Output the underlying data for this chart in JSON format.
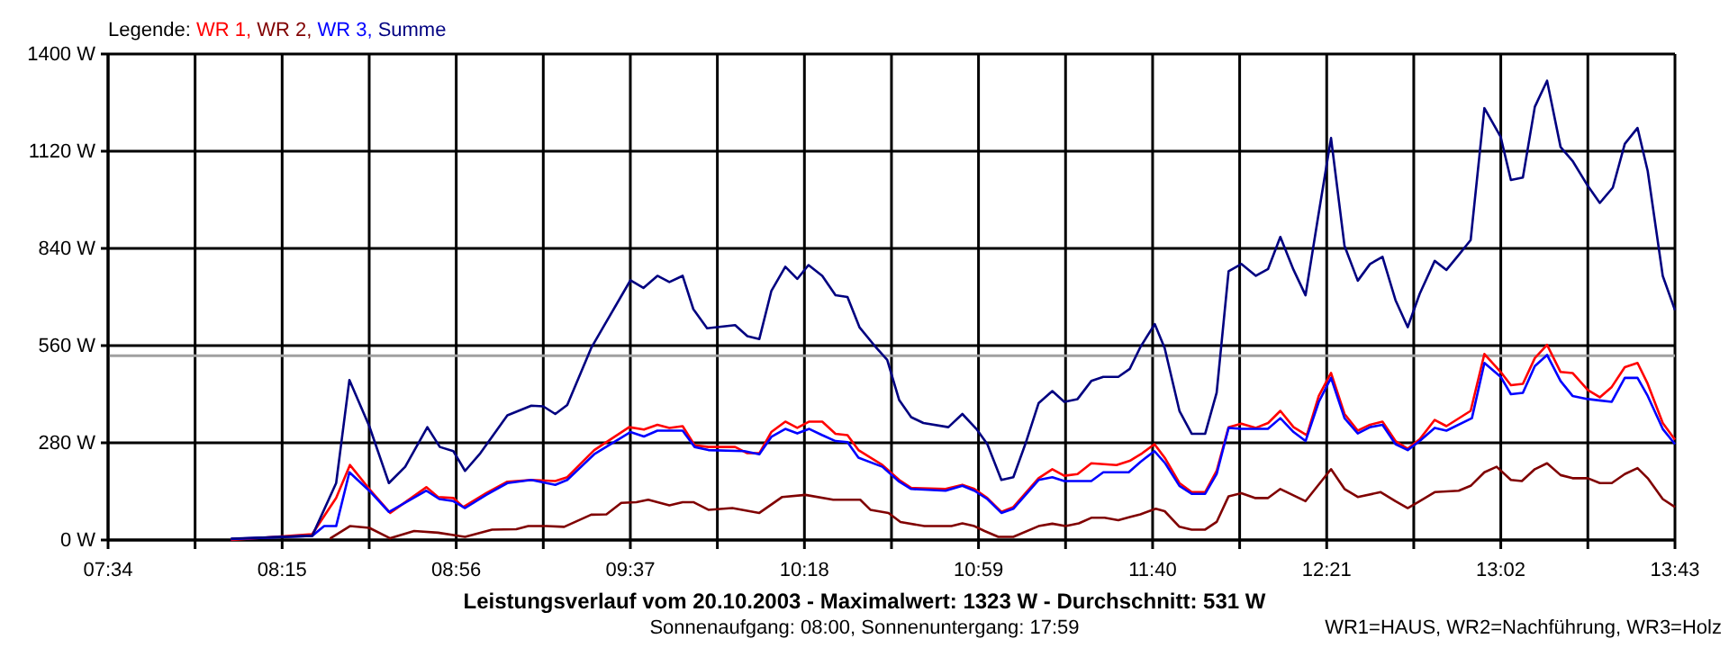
{
  "chart_data": {
    "type": "line",
    "title": "Leistungsverlauf vom 20.10.2003 - Maximalwert: 1323 W - Durchschnitt: 531 W",
    "subtitle": "Sonnenaufgang: 08:00, Sonnenuntergang: 17:59",
    "annotations": [
      "WR1=HAUS, WR2=Nachführung, WR3=Holz"
    ],
    "legend_title": "Legende:",
    "legend": "top left",
    "grid": true,
    "xlim": [
      7.5667,
      13.717
    ],
    "xticks": [
      {
        "value": 7.5667,
        "label": "07:34"
      },
      {
        "value": 7.9083,
        "label": null
      },
      {
        "value": 8.25,
        "label": "08:15"
      },
      {
        "value": 8.5917,
        "label": null
      },
      {
        "value": 8.9333,
        "label": "08:56"
      },
      {
        "value": 9.275,
        "label": null
      },
      {
        "value": 9.6167,
        "label": "09:37"
      },
      {
        "value": 9.9583,
        "label": null
      },
      {
        "value": 10.3,
        "label": "10:18"
      },
      {
        "value": 10.6417,
        "label": null
      },
      {
        "value": 10.9833,
        "label": "10:59"
      },
      {
        "value": 11.325,
        "label": null
      },
      {
        "value": 11.6667,
        "label": "11:40"
      },
      {
        "value": 12.0083,
        "label": null
      },
      {
        "value": 12.35,
        "label": "12:21"
      },
      {
        "value": 12.6917,
        "label": null
      },
      {
        "value": 13.0333,
        "label": "13:02"
      },
      {
        "value": 13.375,
        "label": null
      },
      {
        "value": 13.717,
        "label": "13:43"
      }
    ],
    "ylim": [
      0,
      1400
    ],
    "yticks": [
      {
        "value": 0,
        "label": "0 W"
      },
      {
        "value": 280,
        "label": "280 W"
      },
      {
        "value": 560,
        "label": "560 W"
      },
      {
        "value": 840,
        "label": "840 W"
      },
      {
        "value": 1120,
        "label": "1120 W"
      },
      {
        "value": 1400,
        "label": "1400 W"
      }
    ],
    "ref_lines": [
      {
        "axis": "y",
        "value": 531,
        "color": "#a0a0a0"
      }
    ],
    "series": [
      {
        "name": "WR 1,",
        "color": "#ff0000",
        "x": [
          8.049,
          8.368,
          8.462,
          8.516,
          8.592,
          8.674,
          8.816,
          8.862,
          8.922,
          8.961,
          9.051,
          9.134,
          9.228,
          9.322,
          9.369,
          9.475,
          9.612,
          9.67,
          9.723,
          9.77,
          9.822,
          9.869,
          9.923,
          10.028,
          10.076,
          10.123,
          10.17,
          10.225,
          10.272,
          10.319,
          10.37,
          10.422,
          10.469,
          10.512,
          10.606,
          10.672,
          10.719,
          10.854,
          10.92,
          10.967,
          11.018,
          11.073,
          11.12,
          11.219,
          11.273,
          11.32,
          11.372,
          11.426,
          11.525,
          11.577,
          11.626,
          11.674,
          11.716,
          11.772,
          11.82,
          11.873,
          11.918,
          11.965,
          12.015,
          12.072,
          12.12,
          12.168,
          12.22,
          12.272,
          12.319,
          12.367,
          12.42,
          12.472,
          12.52,
          12.569,
          12.62,
          12.668,
          12.715,
          12.774,
          12.82,
          12.915,
          12.969,
          13.033,
          13.073,
          13.12,
          13.167,
          13.215,
          13.268,
          13.315,
          13.375,
          13.422,
          13.469,
          13.52,
          13.57,
          13.61,
          13.669,
          13.717
        ],
        "values": [
          0,
          17,
          121,
          216,
          147,
          78,
          152,
          124,
          121,
          95,
          135,
          168,
          173,
          170,
          181,
          259,
          325,
          318,
          332,
          323,
          328,
          273,
          268,
          268,
          250,
          250,
          311,
          341,
          323,
          341,
          341,
          306,
          302,
          259,
          216,
          173,
          150,
          147,
          159,
          147,
          121,
          81,
          95,
          178,
          204,
          185,
          190,
          221,
          216,
          228,
          250,
          276,
          235,
          164,
          138,
          138,
          199,
          325,
          335,
          323,
          337,
          372,
          325,
          302,
          415,
          481,
          363,
          315,
          332,
          341,
          285,
          263,
          290,
          346,
          328,
          372,
          536,
          484,
          446,
          450,
          524,
          562,
          484,
          481,
          432,
          411,
          441,
          498,
          510,
          450,
          337,
          289
        ]
      },
      {
        "name": "WR 2,",
        "color": "#800000",
        "x": [
          8.438,
          8.516,
          8.592,
          8.674,
          8.768,
          8.862,
          8.968,
          9.074,
          9.169,
          9.216,
          9.287,
          9.357,
          9.463,
          9.523,
          9.581,
          9.64,
          9.687,
          9.77,
          9.822,
          9.864,
          9.923,
          10.017,
          10.123,
          10.213,
          10.304,
          10.413,
          10.519,
          10.559,
          10.63,
          10.677,
          10.771,
          10.877,
          10.92,
          10.967,
          11.007,
          11.061,
          11.12,
          11.219,
          11.273,
          11.325,
          11.377,
          11.426,
          11.478,
          11.532,
          11.577,
          11.619,
          11.679,
          11.714,
          11.772,
          11.82,
          11.873,
          11.918,
          11.965,
          12.015,
          12.068,
          12.12,
          12.168,
          12.267,
          12.367,
          12.42,
          12.472,
          12.562,
          12.62,
          12.668,
          12.715,
          12.774,
          12.868,
          12.915,
          12.969,
          13.017,
          13.073,
          13.116,
          13.167,
          13.215,
          13.268,
          13.315,
          13.375,
          13.422,
          13.469,
          13.52,
          13.57,
          13.61,
          13.669,
          13.717
        ],
        "values": [
          4,
          40,
          35,
          5,
          26,
          21,
          9,
          30,
          31,
          40,
          40,
          38,
          73,
          74,
          107,
          109,
          116,
          100,
          109,
          109,
          87,
          92,
          78,
          124,
          130,
          116,
          116,
          87,
          78,
          52,
          40,
          40,
          48,
          40,
          26,
          9,
          9,
          40,
          47,
          40,
          48,
          64,
          64,
          57,
          66,
          74,
          90,
          83,
          38,
          30,
          30,
          52,
          126,
          135,
          121,
          121,
          147,
          112,
          204,
          147,
          124,
          138,
          112,
          92,
          112,
          138,
          142,
          156,
          195,
          211,
          173,
          170,
          204,
          221,
          187,
          178,
          178,
          164,
          164,
          190,
          207,
          178,
          118,
          95
        ]
      },
      {
        "name": "WR 3,",
        "color": "#0000ff",
        "x": [
          8.049,
          8.368,
          8.415,
          8.462,
          8.514,
          8.592,
          8.669,
          8.816,
          8.867,
          8.922,
          8.968,
          9.051,
          9.134,
          9.228,
          9.322,
          9.369,
          9.475,
          9.617,
          9.67,
          9.723,
          9.822,
          9.869,
          9.923,
          10.064,
          10.123,
          10.17,
          10.225,
          10.272,
          10.319,
          10.37,
          10.422,
          10.469,
          10.512,
          10.606,
          10.672,
          10.719,
          10.854,
          10.92,
          10.967,
          11.018,
          11.073,
          11.12,
          11.219,
          11.273,
          11.32,
          11.426,
          11.473,
          11.573,
          11.619,
          11.674,
          11.716,
          11.772,
          11.82,
          11.873,
          11.918,
          11.965,
          12.015,
          12.119,
          12.168,
          12.22,
          12.267,
          12.319,
          12.367,
          12.42,
          12.472,
          12.52,
          12.569,
          12.62,
          12.668,
          12.715,
          12.774,
          12.82,
          12.92,
          12.969,
          13.033,
          13.073,
          13.12,
          13.167,
          13.215,
          13.268,
          13.315,
          13.375,
          13.469,
          13.52,
          13.57,
          13.61,
          13.669,
          13.717
        ],
        "values": [
          3,
          12,
          40,
          40,
          195,
          142,
          81,
          142,
          118,
          112,
          92,
          130,
          164,
          173,
          159,
          173,
          247,
          311,
          298,
          315,
          315,
          268,
          259,
          256,
          247,
          297,
          320,
          307,
          320,
          302,
          285,
          282,
          237,
          211,
          168,
          147,
          142,
          156,
          142,
          118,
          78,
          90,
          173,
          181,
          170,
          170,
          195,
          195,
          225,
          256,
          221,
          156,
          133,
          133,
          190,
          323,
          320,
          320,
          351,
          311,
          285,
          398,
          467,
          351,
          307,
          325,
          332,
          276,
          259,
          285,
          323,
          315,
          351,
          510,
          470,
          420,
          424,
          501,
          533,
          458,
          415,
          406,
          398,
          467,
          467,
          415,
          320,
          276
        ]
      },
      {
        "name": "Summe",
        "color": "#000080",
        "x": [
          8.049,
          8.368,
          8.462,
          8.514,
          8.592,
          8.669,
          8.733,
          8.82,
          8.869,
          8.922,
          8.968,
          9.028,
          9.134,
          9.228,
          9.275,
          9.322,
          9.369,
          9.463,
          9.51,
          9.617,
          9.668,
          9.723,
          9.77,
          9.822,
          9.864,
          9.918,
          10.028,
          10.076,
          10.123,
          10.17,
          10.225,
          10.272,
          10.316,
          10.37,
          10.422,
          10.469,
          10.516,
          10.583,
          10.625,
          10.672,
          10.719,
          10.767,
          10.865,
          10.92,
          10.975,
          11.018,
          11.073,
          11.12,
          11.167,
          11.219,
          11.273,
          11.32,
          11.372,
          11.426,
          11.473,
          11.532,
          11.577,
          11.619,
          11.675,
          11.714,
          11.772,
          11.82,
          11.873,
          11.918,
          11.965,
          12.015,
          12.072,
          12.12,
          12.168,
          12.22,
          12.267,
          12.315,
          12.367,
          12.42,
          12.472,
          12.52,
          12.569,
          12.62,
          12.668,
          12.715,
          12.774,
          12.82,
          12.868,
          12.915,
          12.969,
          13.033,
          13.073,
          13.12,
          13.167,
          13.215,
          13.268,
          13.315,
          13.375,
          13.422,
          13.473,
          13.52,
          13.57,
          13.61,
          13.669,
          13.717
        ],
        "values": [
          4,
          12,
          164,
          461,
          328,
          164,
          211,
          325,
          268,
          256,
          199,
          250,
          359,
          387,
          385,
          363,
          389,
          553,
          613,
          748,
          726,
          761,
          743,
          761,
          665,
          610,
          619,
          587,
          579,
          717,
          787,
          752,
          792,
          761,
          705,
          700,
          613,
          553,
          519,
          403,
          354,
          337,
          325,
          363,
          320,
          276,
          173,
          181,
          276,
          394,
          429,
          398,
          406,
          458,
          470,
          470,
          493,
          556,
          622,
          553,
          372,
          306,
          306,
          424,
          774,
          795,
          761,
          781,
          873,
          778,
          705,
          925,
          1158,
          847,
          747,
          795,
          816,
          691,
          613,
          709,
          804,
          778,
          821,
          864,
          1244,
          1161,
          1037,
          1044,
          1248,
          1323,
          1132,
          1092,
          1020,
          971,
          1015,
          1141,
          1187,
          1063,
          761,
          662
        ]
      }
    ]
  }
}
